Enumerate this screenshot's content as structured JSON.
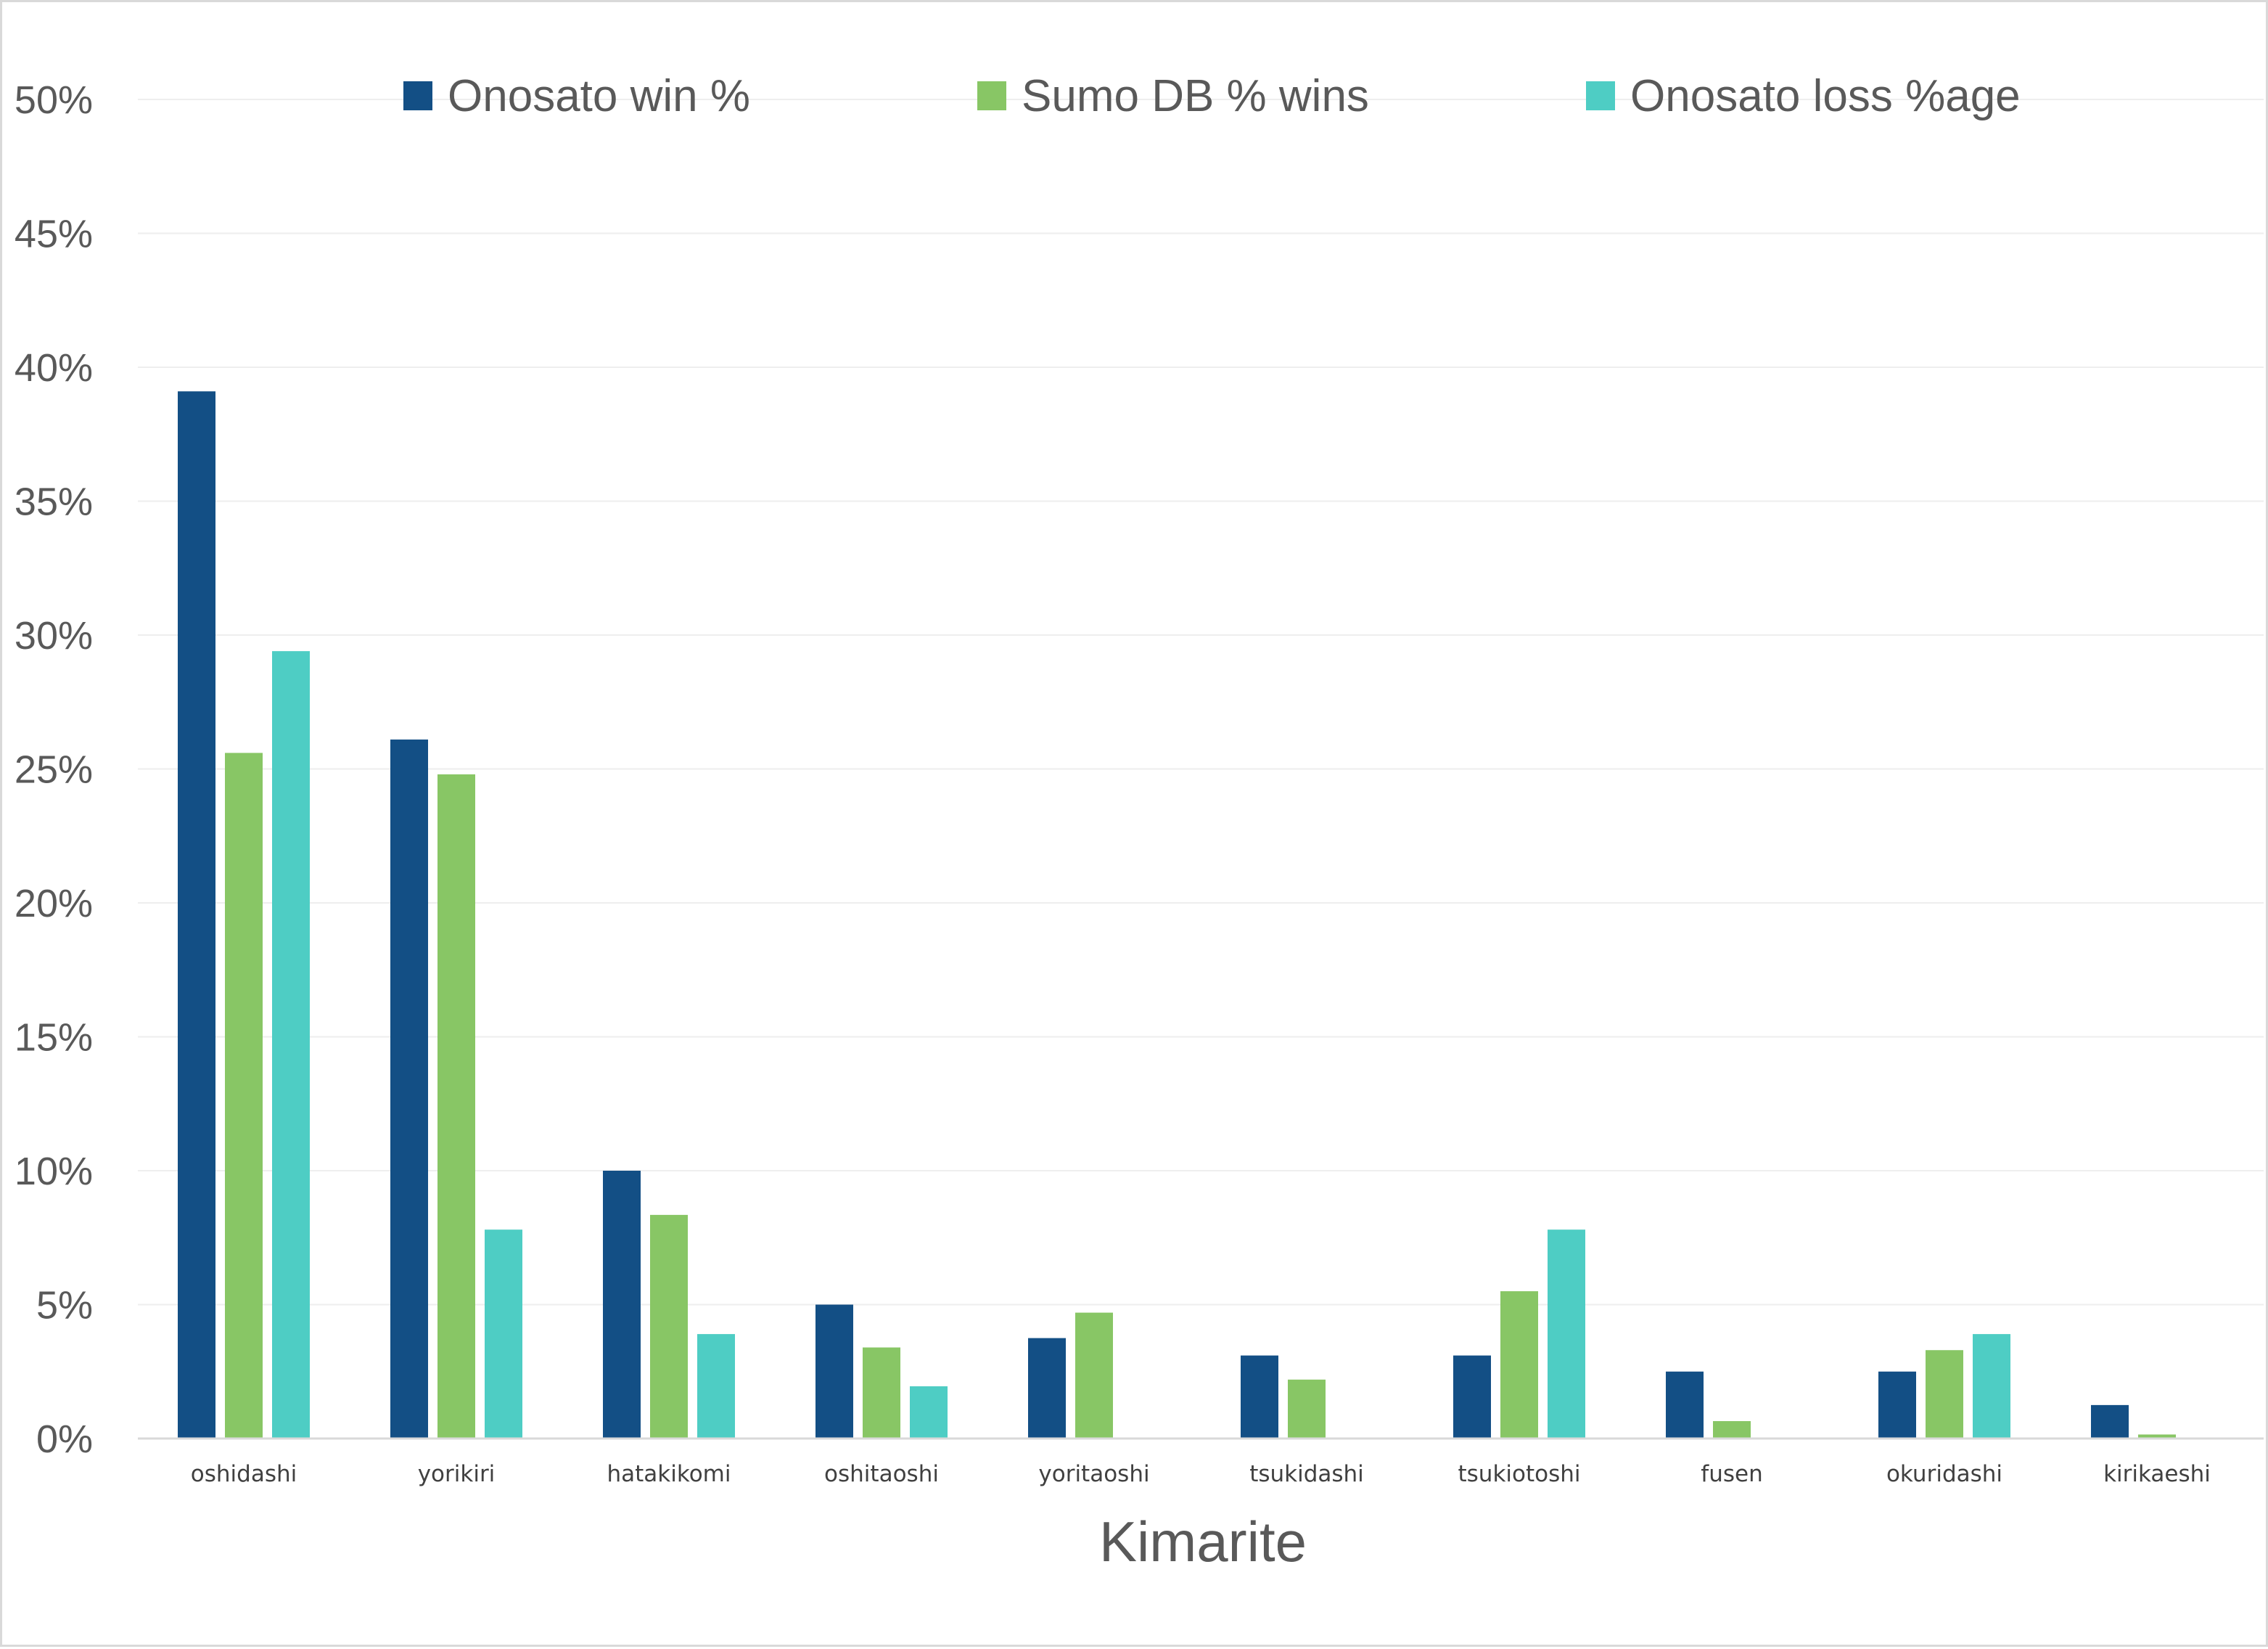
{
  "chart_data": {
    "type": "bar",
    "title": "",
    "xlabel": "Kimarite",
    "ylabel": "",
    "ylim": [
      0,
      50
    ],
    "y_tick_values": [
      0,
      5,
      10,
      15,
      20,
      25,
      30,
      35,
      40,
      45,
      50
    ],
    "y_tick_labels": [
      "0%",
      "5%",
      "10%",
      "15%",
      "20%",
      "25%",
      "30%",
      "35%",
      "40%",
      "45%",
      "50%"
    ],
    "grid": true,
    "legend_position": "top",
    "categories": [
      "oshidashi",
      "yorikiri",
      "hatakikomi",
      "oshitaoshi",
      "yoritaoshi",
      "tsukidashi",
      "tsukiotoshi",
      "fusen",
      "okuridashi",
      "kirikaeshi"
    ],
    "series": [
      {
        "name": "Onosato win %",
        "color": "#134f85",
        "values": [
          39.1,
          26.1,
          10.0,
          5.0,
          3.75,
          3.1,
          3.1,
          2.5,
          2.5,
          1.25
        ]
      },
      {
        "name": "Sumo DB % wins",
        "color": "#88c665",
        "values": [
          25.6,
          24.8,
          8.35,
          3.4,
          4.7,
          2.2,
          5.5,
          0.65,
          3.3,
          0.15
        ]
      },
      {
        "name": "Onosato loss %age",
        "color": "#4ecdc4",
        "values": [
          29.4,
          7.8,
          3.9,
          1.95,
          0,
          0,
          7.8,
          0,
          3.9,
          0
        ]
      }
    ]
  }
}
